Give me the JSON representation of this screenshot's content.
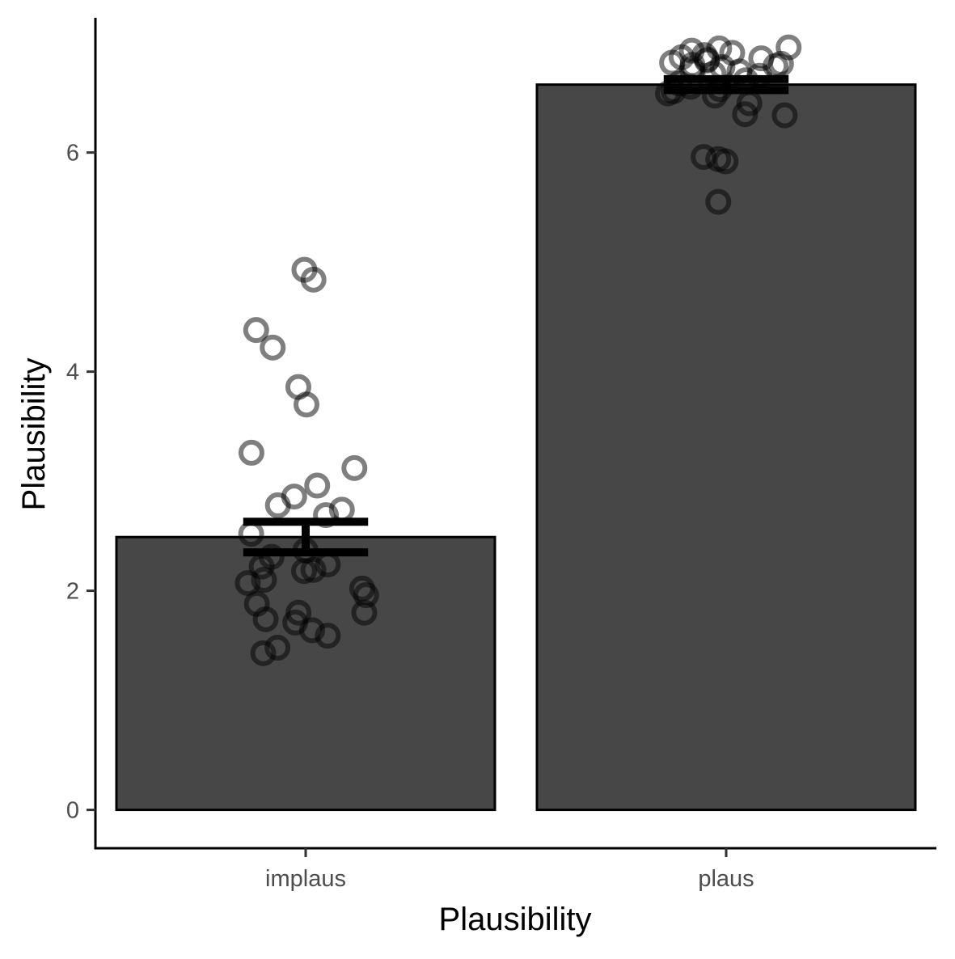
{
  "chart_data": {
    "type": "bar",
    "xlabel": "Plausibility",
    "ylabel": "Plausibility",
    "categories": [
      "implaus",
      "plaus"
    ],
    "values": [
      2.49,
      6.62
    ],
    "error_bars": [
      {
        "low": 2.35,
        "high": 2.63
      },
      {
        "low": 6.57,
        "high": 6.67
      }
    ],
    "ylim": [
      -0.35,
      7.23
    ],
    "yticks": [
      0,
      2,
      4,
      6
    ],
    "points": [
      [
        4.93,
        4.84,
        4.38,
        4.22,
        3.86,
        3.7,
        3.26,
        3.12,
        2.96,
        2.86,
        2.78,
        2.74,
        2.69,
        2.52,
        2.37,
        2.31,
        2.24,
        2.22,
        2.19,
        2.18,
        2.1,
        2.07,
        2.02,
        1.96,
        1.88,
        1.8,
        1.8,
        1.74,
        1.71,
        1.64,
        1.59,
        1.48,
        1.43
      ],
      [
        6.96,
        6.95,
        6.93,
        6.91,
        6.89,
        6.87,
        6.86,
        6.85,
        6.84,
        6.82,
        6.81,
        6.8,
        6.79,
        6.78,
        6.76,
        6.74,
        6.72,
        6.7,
        6.66,
        6.63,
        6.6,
        6.58,
        6.56,
        6.54,
        6.52,
        6.45,
        6.35,
        6.34,
        5.96,
        5.94,
        5.92,
        5.55
      ]
    ],
    "bar_fill": "#474747",
    "bar_stroke": "#000000",
    "point_stroke": "#000000",
    "point_opacity": 0.5,
    "error_bar_color": "#000000",
    "grid": false,
    "legend": "none"
  }
}
